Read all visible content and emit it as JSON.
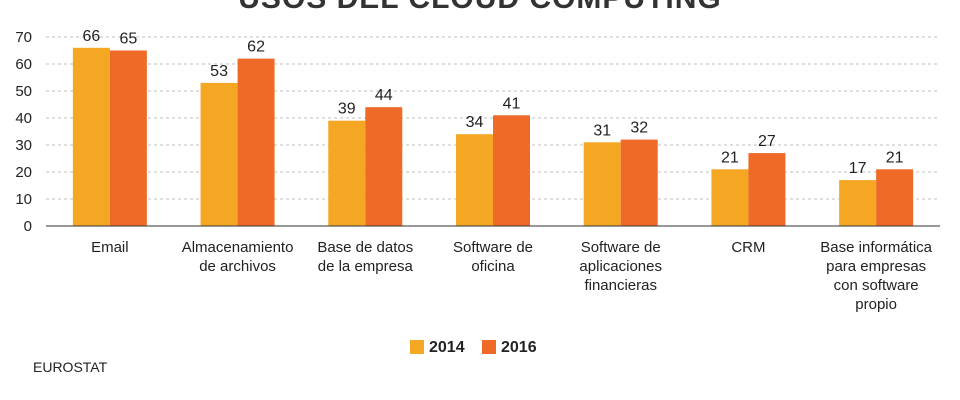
{
  "chart_data": {
    "type": "bar",
    "title": "USOS DEL CLOUD COMPUTING",
    "xlabel": "",
    "ylabel": "",
    "ylim": [
      0,
      70
    ],
    "yticks": [
      0,
      10,
      20,
      30,
      40,
      50,
      60,
      70
    ],
    "grid": true,
    "legend_position": "bottom",
    "categories": [
      [
        "Email"
      ],
      [
        "Almacenamiento",
        "de archivos"
      ],
      [
        "Base de datos",
        "de la empresa"
      ],
      [
        "Software de",
        "oficina"
      ],
      [
        "Software de",
        "aplicaciones",
        "financieras"
      ],
      [
        "CRM"
      ],
      [
        "Base informática",
        "para empresas",
        "con software",
        "propio"
      ]
    ],
    "series": [
      {
        "name": "2014",
        "color": "#f5a623",
        "values": [
          66,
          53,
          39,
          34,
          31,
          21,
          17
        ]
      },
      {
        "name": "2016",
        "color": "#ee6a26",
        "values": [
          65,
          62,
          44,
          41,
          32,
          27,
          21
        ]
      }
    ]
  },
  "source": "EUROSTAT"
}
